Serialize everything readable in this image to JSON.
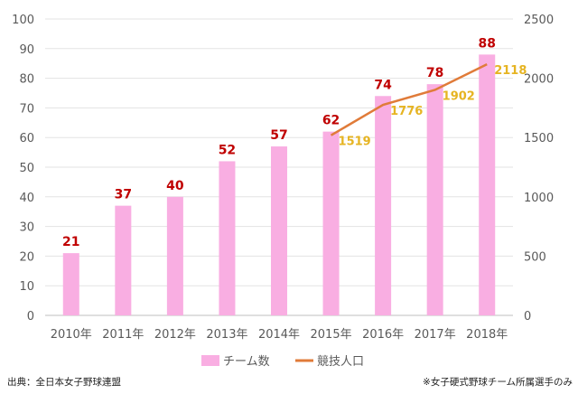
{
  "chart_data": {
    "type": "bar+line",
    "categories": [
      "2010年",
      "2011年",
      "2012年",
      "2013年",
      "2014年",
      "2015年",
      "2016年",
      "2017年",
      "2018年"
    ],
    "series": [
      {
        "name": "チーム数",
        "type": "bar",
        "axis": "left",
        "color": "#f9aee2",
        "values": [
          21,
          37,
          40,
          52,
          57,
          62,
          74,
          78,
          88
        ]
      },
      {
        "name": "競技人口",
        "type": "line",
        "axis": "right",
        "color": "#e07b39",
        "values": [
          null,
          null,
          null,
          null,
          null,
          1519,
          1776,
          1902,
          2118
        ]
      }
    ],
    "y_left": {
      "range": [
        0,
        100
      ],
      "ticks": [
        0,
        10,
        20,
        30,
        40,
        50,
        60,
        70,
        80,
        90,
        100
      ]
    },
    "y_right": {
      "range": [
        0,
        2500
      ],
      "ticks": [
        0,
        500,
        1000,
        1500,
        2000,
        2500
      ]
    },
    "grid": true,
    "legend": "bottom",
    "label_colors": {
      "bar": "#c00000",
      "line": "#e6b422"
    }
  },
  "footer": {
    "source": "出典：全日本女子野球連盟",
    "note": "※女子硬式野球チーム所属選手のみ"
  }
}
